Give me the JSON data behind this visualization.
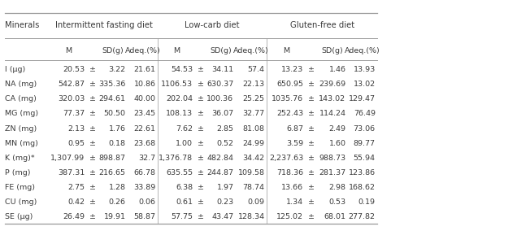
{
  "rows": [
    [
      "I (μg)",
      "20.53",
      "3.22",
      "21.61",
      "54.53",
      "34.11",
      "57.4",
      "13.23",
      "1.46",
      "13.93"
    ],
    [
      "NA (mg)",
      "542.87",
      "335.36",
      "10.86",
      "1106.53",
      "630.37",
      "22.13",
      "650.95",
      "239.69",
      "13.02"
    ],
    [
      "CA (mg)",
      "320.03",
      "294.61",
      "40.00",
      "202.04",
      "100.36",
      "25.25",
      "1035.76",
      "143.02",
      "129.47"
    ],
    [
      "MG (mg)",
      "77.37",
      "50.50",
      "23.45",
      "108.13",
      "36.07",
      "32.77",
      "252.43",
      "114.24",
      "76.49"
    ],
    [
      "ZN (mg)",
      "2.13",
      "1.76",
      "22.61",
      "7.62",
      "2.85",
      "81.08",
      "6.87",
      "2.49",
      "73.06"
    ],
    [
      "MN (mg)",
      "0.95",
      "0.18",
      "23.68",
      "1.00",
      "0.52",
      "24.99",
      "3.59",
      "1.60",
      "89.77"
    ],
    [
      "K (mg)*",
      "1,307.99",
      "898.87",
      "32.7",
      "1,376.78",
      "482.84",
      "34.42",
      "2,237.63",
      "988.73",
      "55.94"
    ],
    [
      "P (mg)",
      "387.31",
      "216.65",
      "66.78",
      "635.55",
      "244.87",
      "109.58",
      "718.36",
      "281.37",
      "123.86"
    ],
    [
      "FE (mg)",
      "2.75",
      "1.28",
      "33.89",
      "6.38",
      "1.97",
      "78.74",
      "13.66",
      "2.98",
      "168.62"
    ],
    [
      "CU (mg)",
      "0.42",
      "0.26",
      "0.06",
      "0.61",
      "0.23",
      "0.09",
      "1.34",
      "0.53",
      "0.19"
    ],
    [
      "SE (μg)",
      "26.49",
      "19.91",
      "58.87",
      "57.75",
      "43.47",
      "128.34",
      "125.02",
      "68.01",
      "277.82"
    ]
  ],
  "group_labels": [
    "Intermittent fasting diet",
    "Low-carb diet",
    "Gluten-free diet"
  ],
  "sub_headers": [
    "M",
    "SD(g)",
    "Adeq.(%)"
  ],
  "mineral_label": "Minerals",
  "font_size": 6.8,
  "group_font_size": 7.2,
  "text_color": "#3a3a3a",
  "line_color": "#999999",
  "background_color": "#ffffff",
  "fig_width": 6.36,
  "fig_height": 2.84,
  "dpi": 100
}
